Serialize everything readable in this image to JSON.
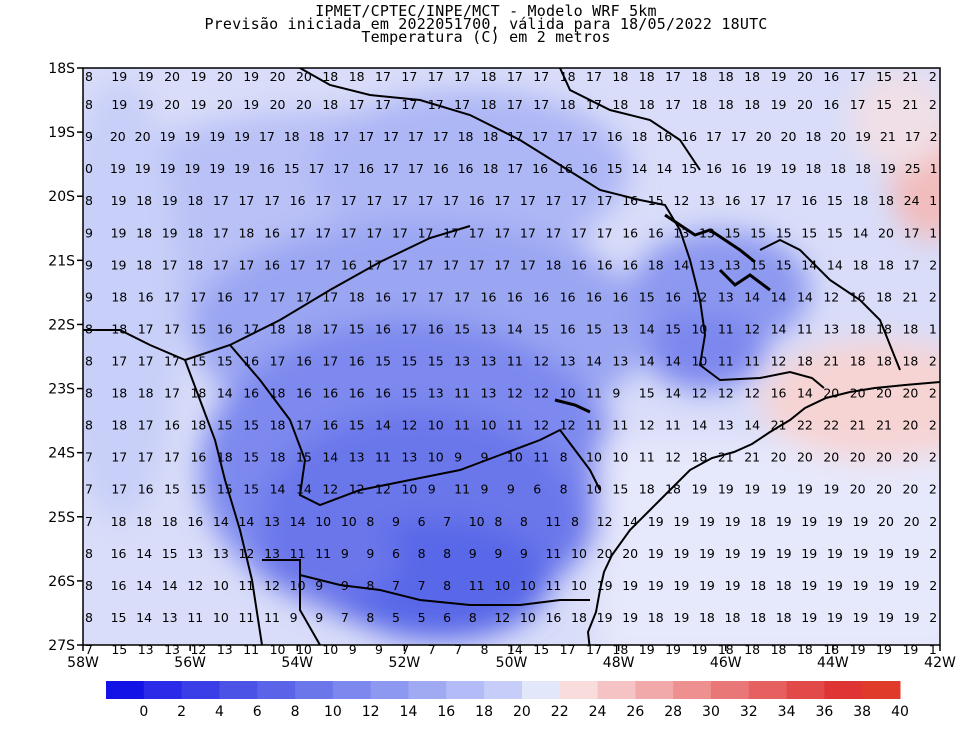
{
  "header": {
    "line1": "IPMET/CPTEC/INPE/MCT - Modelo WRF 5km",
    "line2": "Previsão iniciada em 2022051700, válida para 18/05/2022 18UTC",
    "line3": "Temperatura (C) em 2 metros"
  },
  "map": {
    "lat_labels": [
      "18S",
      "19S",
      "20S",
      "21S",
      "22S",
      "23S",
      "24S",
      "25S",
      "26S",
      "27S"
    ],
    "lon_labels": [
      "58W",
      "56W",
      "54W",
      "52W",
      "50W",
      "48W",
      "46W",
      "44W",
      "42W"
    ],
    "lon_range": [
      -58,
      -42
    ],
    "lat_range": [
      -27,
      -18
    ]
  },
  "colorbar": {
    "labels": [
      "0",
      "2",
      "4",
      "6",
      "8",
      "10",
      "12",
      "14",
      "16",
      "18",
      "20",
      "22",
      "24",
      "26",
      "28",
      "30",
      "32",
      "34",
      "36",
      "38",
      "40"
    ],
    "colors": [
      "#1313e8",
      "#2a2ae8",
      "#3a3ee6",
      "#4b52e6",
      "#5b64e8",
      "#6b76ea",
      "#7d88ee",
      "#8d99f0",
      "#a0aaf3",
      "#b3bcf6",
      "#c6cdf8",
      "#e3e7fa",
      "#f9dcdc",
      "#f5c3c3",
      "#f2a9a9",
      "#ee9090",
      "#ea7777",
      "#e66060",
      "#e24949",
      "#de3434",
      "#e03a2a"
    ]
  },
  "grid_rows": [
    {
      "lat": "18S",
      "values": "8 19 19 20 19 20 19 20 20 18 18 17 17 17 17 18 17 17 18 17 18 18 17 18 18 18 19 20 16 17 15 21 2"
    },
    {
      "lat": "",
      "values": "8 19 19 20 19 20 19 20 20 18 17 17 17 17 17 18 17 17 18 17 18 18 17 18 18 18 19 20 16 17 15 21 2"
    },
    {
      "lat": "19S",
      "values": "9 20 20 19 19 19 19 17 18 18 17 17 17 17 17 18 18 17 17 17 17 16 18 16 16 17 17 20 20 18 20 19 21 17 2"
    },
    {
      "lat": "",
      "values": "0 19 19 19 19 19 19 16 15 17 17 16 17 17 16 16 18 17 16 16 16 15 14 14 15 16 16 19 19 18 18 18 19 25 1"
    },
    {
      "lat": "20S",
      "values": "8 19 18 19 18 17 17 17 16 17 17 17 17 17 17 16 17 17 17 17 17 16 15 12 13 16 17 17 16 15 18 18 24 1"
    },
    {
      "lat": "",
      "values": "9 19 18 19 18 17 18 16 17 17 17 17 17 17 17 17 17 17 17 17 17 16 16 13 13 15 15 15 15 15 14 20 17 1"
    },
    {
      "lat": "21S",
      "values": "9 19 18 17 18 17 17 16 17 17 16 17 17 17 17 17 17 17 18 16 16 16 18 14 13 13 15 15 14 14 18 18 17 2"
    },
    {
      "lat": "",
      "values": "9 18 16 17 17 16 17 17 17 17 18 16 17 17 17 16 16 16 16 16 16 15 16 12 13 14 14 14 12 16 18 21 2"
    },
    {
      "lat": "22S",
      "values": "8 18 17 17 15 16 17 18 18 17 15 16 17 16 15 13 14 15 16 15 13 14 15 10 11 12 14 11 13 18 18 18 1"
    },
    {
      "lat": "",
      "values": "8 17 17 17 15 15 16 17 16 17 16 15 15 15 13 13 11 12 13 14 13 14 14 10 11 11 12 18 21 18 18 18 2"
    },
    {
      "lat": "23S",
      "values": "8 18 18 17 18 14 16 18 16 16 16 16 15 13 11 13 12 12 10 11 9 15 14 12 12 12 16 14 20 20 20 20 2"
    },
    {
      "lat": "",
      "values": "8 18 17 16 18 15 15 18 17 16 15 14 12 10 11 10 11 12 12 11 11 12 11 14 13 14 21 22 22 21 21 20 2"
    },
    {
      "lat": "24S",
      "values": "7 17 17 17 16 18 15 18 15 14 13 11 13 10 9 9 10 11 8 10 10 11 12 18 21 21 20 20 20 20 20 20 2"
    },
    {
      "lat": "",
      "values": "7 17 16 15 15 15 15 14 14 12 12 12 10 9 11 9 9 6 8 10 15 18 18 19 19 19 19 19 19 20 20 20 2"
    },
    {
      "lat": "25S",
      "values": "7 18 18 18 16 14 14 13 14 10 10 8 9 6 7 10 8 8 11 8 12 14 19 19 19 19 18 19 19 19 19 20 20 2"
    },
    {
      "lat": "",
      "values": "8 16 14 15 13 13 12 13 11 11 9 9 6 8 8 9 9 9 11 10 20 20 19 19 19 19 19 19 19 19 19 19 19 2"
    },
    {
      "lat": "26S",
      "values": "8 16 14 14 12 10 11 12 10 9 9 8 7 7 8 11 10 10 11 10 19 19 19 19 19 19 18 18 19 19 19 19 19 2"
    },
    {
      "lat": "",
      "values": "8 15 14 13 11 10 11 11 9 9 7 8 5 5 6 8 12 10 16 18 19 19 18 19 18 18 18 18 19 19 19 19 19 2"
    },
    {
      "lat": "27S",
      "values": "7 15 13 13 12 13 11 10 10 10 9 9 7 7 7 8 14 15 17 17 18 19 19 19 18 18 18 18 18 19 19 19 1"
    }
  ]
}
